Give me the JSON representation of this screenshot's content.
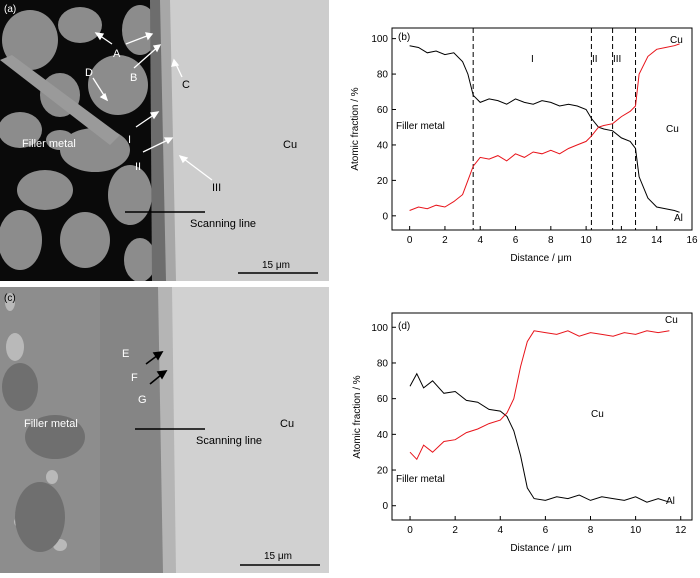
{
  "panel_a": {
    "label": "(a)",
    "filler_label": "Filler metal",
    "cu_label": "Cu",
    "scan_label": "Scanning line",
    "scale_label": "15 μm",
    "markers": [
      "A",
      "B",
      "C",
      "D",
      "I",
      "II",
      "III"
    ]
  },
  "panel_c": {
    "label": "(c)",
    "filler_label": "Filler metal",
    "cu_label": "Cu",
    "scan_label": "Scanning line",
    "scale_label": "15 μm",
    "markers": [
      "E",
      "F",
      "G"
    ]
  },
  "colors": {
    "al_line": "#000000",
    "cu_line": "#e8141b",
    "sem_cu": "#cdcdcd",
    "sem_dark": "#0a0a0a",
    "sem_grey": "#8c8c8c",
    "sem_layer": "#9a9a9a"
  },
  "chart_data": [
    {
      "type": "line",
      "panel_label": "(b)",
      "xlabel": "Distance / μm",
      "ylabel": "Atomic fraction / %",
      "xlim": [
        -1,
        16
      ],
      "ylim": [
        -8,
        106
      ],
      "xticks": [
        "0",
        "2",
        "4",
        "6",
        "8",
        "10",
        "12",
        "14",
        "16"
      ],
      "yticks": [
        "0",
        "20",
        "40",
        "60",
        "80",
        "100"
      ],
      "annotations": {
        "filler": "Filler metal",
        "cu_top": "Cu",
        "cu_mid": "Cu",
        "al": "Al",
        "zone1": "I",
        "zone2": "II",
        "zone3": "III"
      },
      "dashed_x": [
        3.6,
        10.3,
        11.5,
        12.8
      ],
      "series": [
        {
          "name": "Al",
          "x": [
            0,
            0.5,
            1,
            1.5,
            2,
            2.5,
            3,
            3.3,
            3.6,
            4,
            4.5,
            5,
            5.5,
            6,
            6.5,
            7,
            7.5,
            8,
            8.5,
            9,
            9.5,
            10,
            10.3,
            10.7,
            11,
            11.5,
            12,
            12.5,
            12.8,
            13,
            13.5,
            14,
            14.5,
            15,
            15.3
          ],
          "y": [
            96,
            95,
            92,
            93,
            91,
            92,
            87,
            80,
            68,
            64,
            66,
            65,
            63,
            66,
            64,
            63,
            65,
            64,
            62,
            63,
            62,
            60,
            55,
            50,
            49,
            48,
            44,
            42,
            38,
            22,
            10,
            5,
            4,
            3,
            2
          ]
        },
        {
          "name": "Cu",
          "x": [
            0,
            0.5,
            1,
            1.5,
            2,
            2.5,
            3,
            3.3,
            3.6,
            4,
            4.5,
            5,
            5.5,
            6,
            6.5,
            7,
            7.5,
            8,
            8.5,
            9,
            9.5,
            10,
            10.3,
            10.7,
            11,
            11.5,
            12,
            12.5,
            12.8,
            13,
            13.5,
            14,
            14.5,
            15,
            15.3
          ],
          "y": [
            3,
            5,
            4,
            6,
            5,
            8,
            12,
            20,
            28,
            33,
            32,
            34,
            31,
            35,
            33,
            36,
            35,
            37,
            35,
            38,
            40,
            42,
            45,
            50,
            51,
            52,
            56,
            59,
            62,
            80,
            90,
            94,
            95,
            96,
            97
          ]
        }
      ]
    },
    {
      "type": "line",
      "panel_label": "(d)",
      "xlabel": "Distance / μm",
      "ylabel": "Atomic fraction / %",
      "xlim": [
        -0.8,
        12.5
      ],
      "ylim": [
        -8,
        108
      ],
      "xticks": [
        "0",
        "2",
        "4",
        "6",
        "8",
        "10",
        "12"
      ],
      "yticks": [
        "0",
        "20",
        "40",
        "60",
        "80",
        "100"
      ],
      "annotations": {
        "filler": "Filler metal",
        "cu_top": "Cu",
        "cu_mid": "Cu",
        "al": "Al"
      },
      "series": [
        {
          "name": "Al",
          "x": [
            0,
            0.3,
            0.6,
            1,
            1.5,
            2,
            2.5,
            3,
            3.5,
            4,
            4.3,
            4.6,
            4.9,
            5.2,
            5.5,
            6,
            6.5,
            7,
            7.5,
            8,
            8.5,
            9,
            9.5,
            10,
            10.5,
            11,
            11.5
          ],
          "y": [
            67,
            74,
            66,
            70,
            63,
            64,
            59,
            58,
            54,
            53,
            50,
            42,
            28,
            10,
            4,
            3,
            5,
            4,
            6,
            3,
            5,
            4,
            3,
            5,
            2,
            4,
            2
          ]
        },
        {
          "name": "Cu",
          "x": [
            0,
            0.3,
            0.6,
            1,
            1.5,
            2,
            2.5,
            3,
            3.5,
            4,
            4.3,
            4.6,
            4.9,
            5.2,
            5.5,
            6,
            6.5,
            7,
            7.5,
            8,
            8.5,
            9,
            9.5,
            10,
            10.5,
            11,
            11.5
          ],
          "y": [
            30,
            26,
            34,
            30,
            36,
            37,
            41,
            43,
            46,
            48,
            52,
            60,
            78,
            92,
            98,
            97,
            96,
            98,
            95,
            97,
            96,
            95,
            97,
            96,
            98,
            97,
            98
          ]
        }
      ]
    }
  ]
}
